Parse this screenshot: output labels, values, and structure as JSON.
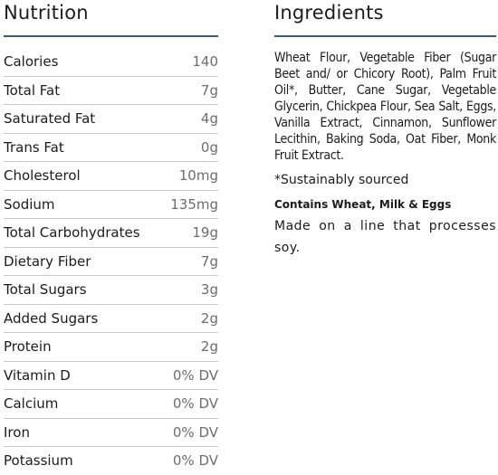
{
  "nutrition": {
    "title": "Nutrition",
    "rows": [
      {
        "name": "Calories",
        "value": "140"
      },
      {
        "name": "Total Fat",
        "value": "7g"
      },
      {
        "name": "Saturated Fat",
        "value": "4g"
      },
      {
        "name": "Trans Fat",
        "value": "0g"
      },
      {
        "name": "Cholesterol",
        "value": "10mg"
      },
      {
        "name": "Sodium",
        "value": "135mg"
      },
      {
        "name": "Total Carbohydrates",
        "value": "19g"
      },
      {
        "name": "Dietary Fiber",
        "value": "7g"
      },
      {
        "name": "Total Sugars",
        "value": "3g"
      },
      {
        "name": "Added Sugars",
        "value": "2g"
      },
      {
        "name": "Protein",
        "value": "2g"
      },
      {
        "name": "Vitamin D",
        "value": "0% DV"
      },
      {
        "name": "Calcium",
        "value": "0% DV"
      },
      {
        "name": "Iron",
        "value": "0% DV"
      },
      {
        "name": "Potassium",
        "value": "0% DV"
      }
    ]
  },
  "ingredients": {
    "title": "Ingredients",
    "text": "Wheat Flour, Vegetable Fiber (Sugar Beet and/ or Chicory Root), Palm Fruit Oil*, Butter, Cane Sugar, Vegetable Glycerin, Chickpea Flour, Sea Salt, Eggs, Vanilla Extract, Cinnamon, Sunflower Lecithin, Baking Soda, Oat Fiber, Monk Fruit Extract.",
    "footnote": "*Sustainably sourced",
    "allergen": "Contains Wheat, Milk & Eggs",
    "facility": "Made on a line that processes soy."
  },
  "colors": {
    "rule": "#3c5a6e",
    "value_text": "#6d6d6d"
  }
}
